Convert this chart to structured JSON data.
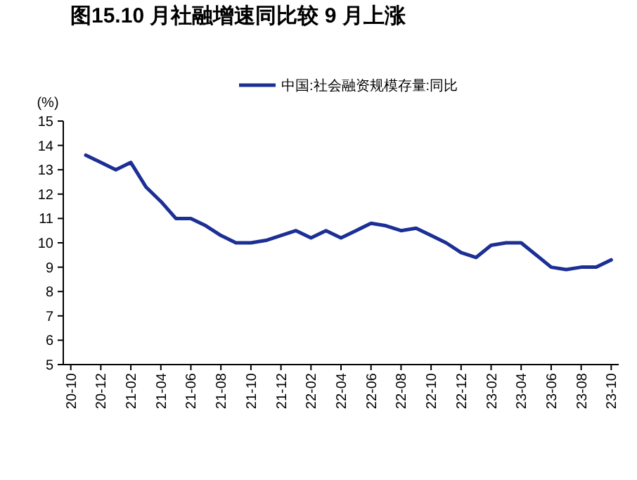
{
  "chart_data": {
    "type": "line",
    "title": "图15.10 月社融增速同比较 9 月上涨",
    "ylabel": "(%)",
    "categories": [
      "20-10",
      null,
      "20-12",
      null,
      "21-02",
      null,
      "21-04",
      null,
      "21-06",
      null,
      "21-08",
      null,
      "21-10",
      null,
      "21-12",
      null,
      "22-02",
      null,
      "22-04",
      null,
      "22-06",
      null,
      "22-08",
      null,
      "22-10",
      null,
      "22-12",
      null,
      "23-02",
      null,
      "23-04",
      null,
      "23-06",
      null,
      "23-08",
      null,
      "23-10"
    ],
    "series": [
      {
        "name": "中国:社会融资规模存量:同比",
        "color": "#1c2f94",
        "values": [
          null,
          13.6,
          13.3,
          13.0,
          13.3,
          12.3,
          11.7,
          11.0,
          11.0,
          10.7,
          10.3,
          10.0,
          10.0,
          10.1,
          10.3,
          10.5,
          10.2,
          10.5,
          10.2,
          10.5,
          10.8,
          10.7,
          10.5,
          10.6,
          10.3,
          10.0,
          9.6,
          9.4,
          9.9,
          10.0,
          10.0,
          9.5,
          9.0,
          8.9,
          9.0,
          9.0,
          9.3
        ]
      }
    ],
    "ylim": [
      5,
      15
    ],
    "yticks": [
      5,
      6,
      7,
      8,
      9,
      10,
      11,
      12,
      13,
      14,
      15
    ],
    "legend": "top",
    "grid": false
  }
}
